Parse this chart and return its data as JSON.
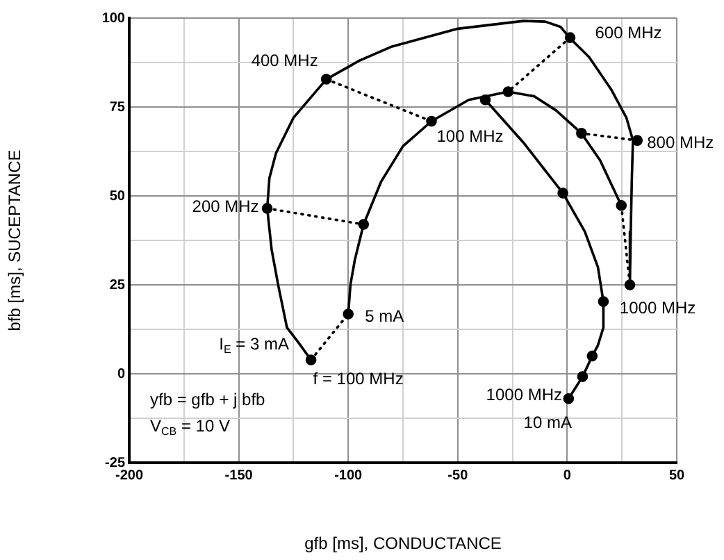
{
  "chart_data": {
    "type": "line",
    "xlabel": "gfb [ms], CONDUCTANCE",
    "ylabel": "bfb [ms], SUCEPTANCE",
    "xlim": [
      -200,
      50
    ],
    "ylim": [
      -25,
      100
    ],
    "xticks": [
      -200,
      {
        "value": -175,
        "label": null
      },
      -150,
      {
        "value": -125,
        "label": null
      },
      -100,
      {
        "value": -75,
        "label": null
      },
      -50,
      {
        "value": -25,
        "label": null
      },
      0,
      {
        "value": 25,
        "label": null
      },
      50
    ],
    "yticks": [
      -25,
      {
        "value": -12.5,
        "label": null
      },
      0,
      {
        "value": 12.5,
        "label": null
      },
      25,
      {
        "value": 37.5,
        "label": null
      },
      50,
      {
        "value": 62.5,
        "label": null
      },
      75,
      {
        "value": 87.5,
        "label": null
      },
      100
    ],
    "grid": true,
    "legend": false,
    "series": [
      {
        "type": "line",
        "color": "#000000",
        "marker": "none",
        "line_style": "solid",
        "x": [
          -117,
          -123,
          -128,
          -132,
          -135,
          -137,
          -136,
          -133,
          -125,
          -110,
          -95,
          -80,
          -50,
          -20,
          -10,
          -3,
          1,
          10,
          20,
          27,
          30,
          29.5,
          29,
          28.6
        ],
        "values": [
          3.9,
          9,
          13,
          25,
          35,
          46.5,
          55,
          62,
          72,
          82.8,
          88,
          92,
          97,
          99.2,
          99,
          97.5,
          94.5,
          89,
          80,
          72,
          65.6,
          55,
          40,
          25
        ]
      },
      {
        "type": "line",
        "color": "#000000",
        "marker": "none",
        "line_style": "solid",
        "x": [
          -100,
          -99,
          -97,
          -93,
          -85,
          -75,
          -62,
          -45,
          -27,
          -15,
          -5,
          6.5,
          15,
          24.7
        ],
        "values": [
          16.8,
          25,
          32,
          42,
          54,
          64,
          71,
          77,
          79.3,
          78,
          74,
          67.6,
          60,
          47.3
        ]
      },
      {
        "type": "line",
        "color": "#000000",
        "marker": "none",
        "line_style": "solid",
        "x": [
          -37.4,
          -20,
          -2,
          8,
          14,
          16.5,
          16.5,
          14,
          11.4,
          7,
          0.6
        ],
        "values": [
          77,
          65,
          50.8,
          40,
          30,
          20.3,
          13,
          8,
          5,
          -0.8,
          -7
        ]
      },
      {
        "type": "scatter",
        "color": "#000000",
        "marker": "circle",
        "x": [
          -117,
          -137,
          -110,
          1.3,
          32,
          28.6,
          -100,
          -93,
          -62,
          -27,
          6.5,
          24.7,
          -37.4,
          -2,
          16.5,
          11.4,
          7,
          0.6
        ],
        "values": [
          3.9,
          46.5,
          82.8,
          94.5,
          65.6,
          25,
          16.8,
          42,
          71,
          79.3,
          67.6,
          47.3,
          77,
          50.8,
          20.3,
          5,
          -0.8,
          -7
        ]
      },
      {
        "type": "line",
        "color": "#000000",
        "marker": "none",
        "line_style": "dotted",
        "x": [
          -117,
          -100
        ],
        "values": [
          3.9,
          16.8
        ]
      },
      {
        "type": "line",
        "color": "#000000",
        "marker": "none",
        "line_style": "dotted",
        "x": [
          -137,
          -93
        ],
        "values": [
          46.5,
          42
        ]
      },
      {
        "type": "line",
        "color": "#000000",
        "marker": "none",
        "line_style": "dotted",
        "x": [
          -110,
          -62
        ],
        "values": [
          82.8,
          71
        ]
      },
      {
        "type": "line",
        "color": "#000000",
        "marker": "none",
        "line_style": "dotted",
        "x": [
          1.3,
          -27
        ],
        "values": [
          94.5,
          79.3
        ]
      },
      {
        "type": "line",
        "color": "#000000",
        "marker": "none",
        "line_style": "dotted",
        "x": [
          32,
          6.5
        ],
        "values": [
          65.6,
          67.6
        ]
      },
      {
        "type": "line",
        "color": "#000000",
        "marker": "none",
        "line_style": "dotted",
        "x": [
          24.7,
          28.6
        ],
        "values": [
          47.3,
          25
        ]
      }
    ],
    "annotations": [
      {
        "text": "400 MHz",
        "x": -110,
        "y": 82.8
      },
      {
        "text": "200 MHz",
        "x": -137,
        "y": 46.5
      },
      {
        "text": "100 MHz",
        "x": -37.4,
        "y": 77
      },
      {
        "text": "600 MHz",
        "x": 1.3,
        "y": 94.5
      },
      {
        "text": "800 MHz",
        "x": 32,
        "y": 65.6
      },
      {
        "text": "1000 MHz",
        "x": 28.6,
        "y": 25
      },
      {
        "text": "1000 MHz",
        "x": 0.6,
        "y": -7
      },
      {
        "text": "10 mA",
        "x": 0.6,
        "y": -7
      },
      {
        "text": "5 mA",
        "x": -100,
        "y": 16.8
      },
      {
        "text": "I$_{E}$ = 3 mA",
        "x": -117,
        "y": 3.9
      },
      {
        "text": "f = 100 MHz",
        "x": -117,
        "y": 3.9
      },
      "yfb = gfb + j bfb",
      "V$_{CB}$ = 10 V"
    ]
  }
}
